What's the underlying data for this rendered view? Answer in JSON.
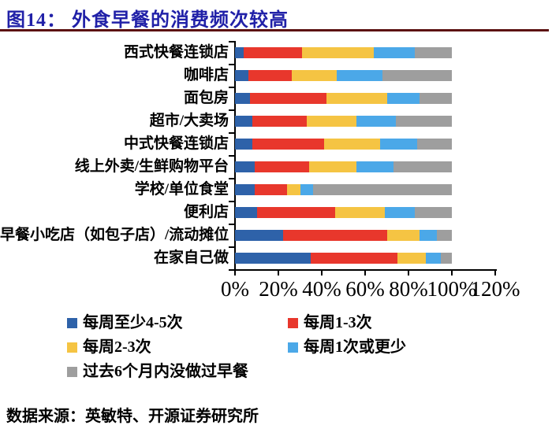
{
  "title": "图14：  外食早餐的消费频次较高",
  "source": "数据来源：英敏特、开源证券研究所",
  "colors": {
    "title_text": "#2121A8",
    "title_divider": "#5C1212",
    "axis": "#000000",
    "background": "#FFFFFF"
  },
  "chart_data": {
    "type": "bar",
    "orientation": "horizontal",
    "stacked": true,
    "unit": "%",
    "xlim": [
      0,
      120
    ],
    "x_tick_labels": [
      "0%",
      "20%",
      "40%",
      "60%",
      "80%",
      "100%",
      "120%"
    ],
    "grid": false,
    "legend_position": "bottom",
    "categories": [
      "西式快餐连锁店",
      "咖啡店",
      "面包房",
      "超市/大卖场",
      "中式快餐连锁店",
      "线上外卖/生鲜购物平台",
      "学校/单位食堂",
      "便利店",
      "早餐小吃店（如包子店）/流动摊位",
      "在家自己做"
    ],
    "series": [
      {
        "name": "每周至少4-5次",
        "color": "#2E62A9",
        "values": [
          4,
          6,
          7,
          8,
          8,
          9,
          9,
          10,
          22,
          35
        ]
      },
      {
        "name": "每周1-3次",
        "color": "#E8372C",
        "values": [
          27,
          20,
          35,
          25,
          33,
          25,
          15,
          36,
          48,
          40
        ]
      },
      {
        "name": "每周2-3次",
        "color": "#F5C443",
        "values": [
          33,
          21,
          28,
          23,
          26,
          22,
          6,
          23,
          15,
          13
        ]
      },
      {
        "name": "每周1次或更少",
        "color": "#4BA8E8",
        "values": [
          19,
          21,
          15,
          18,
          17,
          17,
          6,
          14,
          8,
          7
        ]
      },
      {
        "name": "过去6个月内没做过早餐",
        "color": "#9E9E9E",
        "values": [
          17,
          32,
          15,
          26,
          16,
          27,
          64,
          17,
          7,
          5
        ]
      }
    ]
  }
}
